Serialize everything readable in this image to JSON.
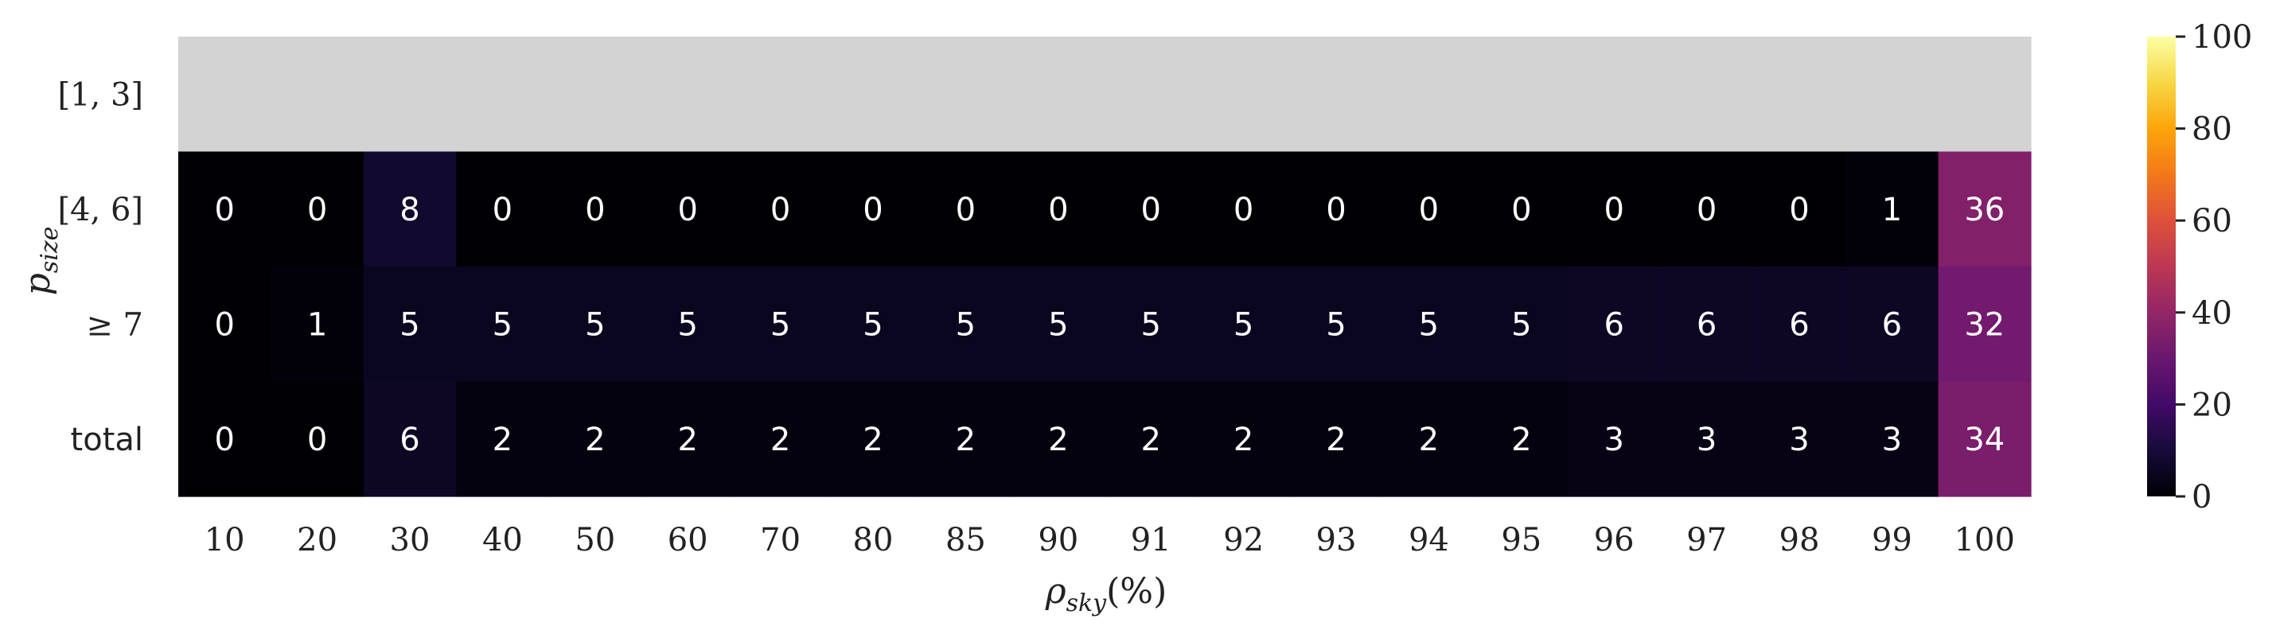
{
  "chart_data": {
    "type": "heatmap",
    "title": "",
    "xlabel": "ρsky(%)",
    "ylabel": "psize",
    "x_categories": [
      "10",
      "20",
      "30",
      "40",
      "50",
      "60",
      "70",
      "80",
      "85",
      "90",
      "91",
      "92",
      "93",
      "94",
      "95",
      "96",
      "97",
      "98",
      "99",
      "100"
    ],
    "y_categories": [
      "[1, 3]",
      "[4, 6]",
      "≥ 7",
      "total"
    ],
    "values": [
      [
        null,
        null,
        null,
        null,
        null,
        null,
        null,
        null,
        null,
        null,
        null,
        null,
        null,
        null,
        null,
        null,
        null,
        null,
        null,
        null
      ],
      [
        0,
        0,
        8,
        0,
        0,
        0,
        0,
        0,
        0,
        0,
        0,
        0,
        0,
        0,
        0,
        0,
        0,
        0,
        1,
        36
      ],
      [
        0,
        1,
        5,
        5,
        5,
        5,
        5,
        5,
        5,
        5,
        5,
        5,
        5,
        5,
        5,
        6,
        6,
        6,
        6,
        32
      ],
      [
        0,
        0,
        6,
        2,
        2,
        2,
        2,
        2,
        2,
        2,
        2,
        2,
        2,
        2,
        2,
        3,
        3,
        3,
        3,
        34
      ]
    ],
    "missing_color": "#d3d3d3",
    "colormap": "inferno",
    "colorbar": {
      "min": 0,
      "max": 100,
      "ticks": [
        0,
        20,
        40,
        60,
        80,
        100
      ]
    },
    "annotate_color": "#ffffff",
    "grid": false,
    "legend": "colorbar right"
  }
}
